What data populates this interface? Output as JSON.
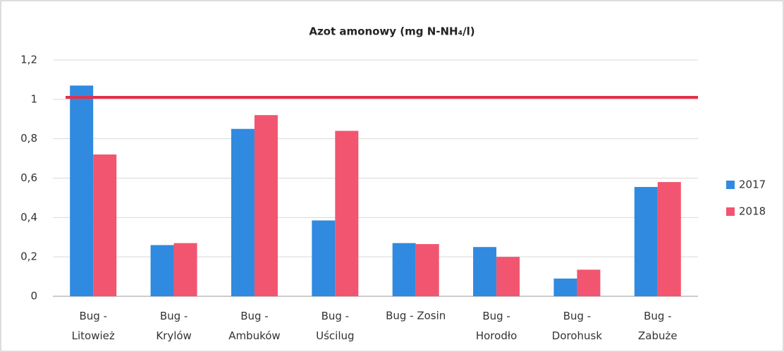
{
  "chart_data": {
    "type": "bar",
    "title": "Azot amonowy (mg N-NH₄/l)",
    "categories": [
      "Bug - Litowież",
      "Bug - Krylów",
      "Bug - Ambuków",
      "Bug - Uścilug",
      "Bug - Zosin",
      "Bug - Horodło",
      "Bug - Dorohusk",
      "Bug - Zabuże"
    ],
    "series": [
      {
        "name": "2017",
        "color": "#2f8ae0",
        "values": [
          1.07,
          0.26,
          0.85,
          0.385,
          0.27,
          0.25,
          0.09,
          0.555
        ]
      },
      {
        "name": "2018",
        "color": "#f2556f",
        "values": [
          0.72,
          0.27,
          0.92,
          0.84,
          0.265,
          0.2,
          0.135,
          0.58
        ]
      }
    ],
    "reference_line": {
      "value": 1.01,
      "color": "#e3304a"
    },
    "ylim": [
      0,
      1.2
    ],
    "yticks": [
      0,
      {
        "value": 0.2,
        "label": "0,2"
      },
      {
        "value": 0.4,
        "label": "0,4"
      },
      {
        "value": 0.6,
        "label": "0,6"
      },
      {
        "value": 0.8,
        "label": "0,8"
      },
      1,
      {
        "value": 1.2,
        "label": "1,2"
      }
    ],
    "grid": true,
    "legend": "right"
  }
}
